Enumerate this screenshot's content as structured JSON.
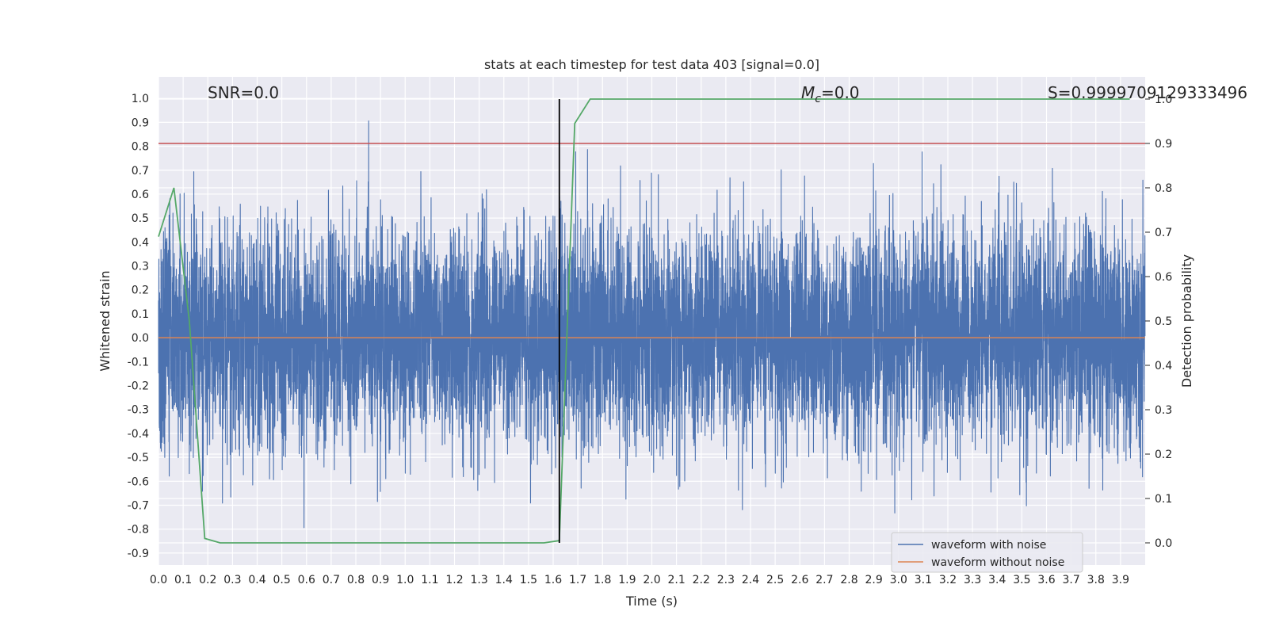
{
  "chart_data": {
    "type": "line",
    "title": "stats at each timestep for test data 403 [signal=0.0]",
    "xlabel": "Time (s)",
    "ylabel": "Whitened strain",
    "y2label": "Detection probability",
    "xlim": [
      0.0,
      4.0
    ],
    "ylim": [
      -0.95,
      1.09
    ],
    "y2lim": [
      -0.05,
      1.05
    ],
    "grid": true,
    "legend_position": "lower-right",
    "x_ticks": [
      "0.0",
      "0.1",
      "0.2",
      "0.3",
      "0.4",
      "0.5",
      "0.6",
      "0.7",
      "0.8",
      "0.9",
      "1.0",
      "1.1",
      "1.2",
      "1.3",
      "1.4",
      "1.5",
      "1.6",
      "1.7",
      "1.8",
      "1.9",
      "2.0",
      "2.1",
      "2.2",
      "2.3",
      "2.4",
      "2.5",
      "2.6",
      "2.7",
      "2.8",
      "2.9",
      "3.0",
      "3.1",
      "3.2",
      "3.3",
      "3.4",
      "3.5",
      "3.6",
      "3.7",
      "3.8",
      "3.9"
    ],
    "y_ticks": [
      "1.0",
      "0.9",
      "0.8",
      "0.7",
      "0.6",
      "0.5",
      "0.4",
      "0.3",
      "0.2",
      "0.1",
      "0.0",
      "-0.1",
      "-0.2",
      "-0.3",
      "-0.4",
      "-0.5",
      "-0.6",
      "-0.7",
      "-0.8",
      "-0.9"
    ],
    "y2_ticks": [
      "1.0",
      "0.9",
      "0.8",
      "0.7",
      "0.6",
      "0.5",
      "0.4",
      "0.3",
      "0.2",
      "0.1",
      "0.0"
    ],
    "annotations": {
      "snr": "SNR=0.0",
      "mc_symbol": "M",
      "mc_subscript": "c",
      "mc_value": "=0.0",
      "s": "S=0.9999709129333496"
    },
    "series": [
      {
        "name": "waveform with noise",
        "color": "#4c72b0",
        "axis": "left",
        "kind": "noise",
        "sample_rate": 2048,
        "duration": 4.0,
        "amplitude_range": [
          -0.82,
          1.0
        ]
      },
      {
        "name": "waveform without noise",
        "color": "#dd8452",
        "axis": "left",
        "values_constant": 0.0
      }
    ],
    "detection_probability": {
      "color": "#55a868",
      "axis": "right",
      "x": [
        0.0,
        0.0625,
        0.125,
        0.1875,
        0.25,
        0.3125,
        0.375,
        0.4375,
        0.5,
        0.5625,
        0.625,
        0.6875,
        0.75,
        0.8125,
        0.875,
        0.9375,
        1.0,
        1.0625,
        1.125,
        1.1875,
        1.25,
        1.3125,
        1.375,
        1.4375,
        1.5,
        1.5625,
        1.625,
        1.6875,
        1.75,
        1.8125,
        1.875,
        1.9375,
        2.0,
        2.5,
        3.0,
        3.5,
        3.9375
      ],
      "y": [
        0.69,
        0.8,
        0.5,
        0.01,
        0.0,
        0.0,
        0.0,
        0.0,
        0.0,
        0.0,
        0.0,
        0.0,
        0.0,
        0.0,
        0.0,
        0.0,
        0.0,
        0.0,
        0.0,
        0.0,
        0.0,
        0.0,
        0.0,
        0.0,
        0.0,
        0.0,
        0.005,
        0.945,
        1.0,
        1.0,
        1.0,
        1.0,
        1.0,
        1.0,
        1.0,
        1.0,
        1.0
      ]
    },
    "threshold_line": {
      "color": "#c44e52",
      "axis": "right",
      "value": 0.9
    },
    "vertical_marker": {
      "color": "#000000",
      "x": 1.625,
      "y2_range": [
        0.0,
        1.0
      ]
    },
    "colors": {
      "plot_background": "#eaeaf2",
      "grid": "#ffffff",
      "text": "#262626"
    }
  }
}
